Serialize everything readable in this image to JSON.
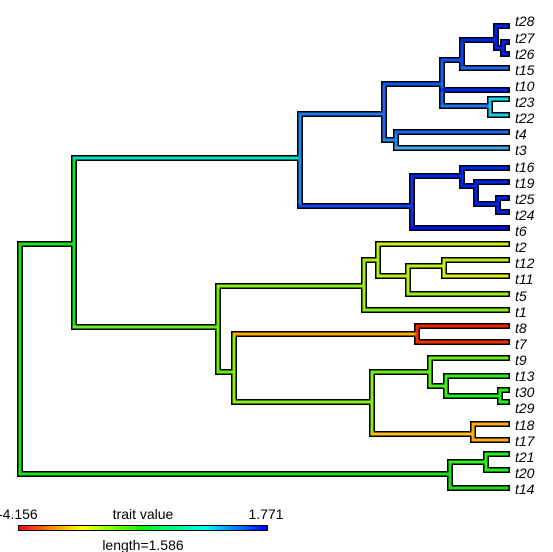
{
  "chart_data": {
    "type": "phylogram",
    "tips": [
      "t28",
      "t27",
      "t26",
      "t15",
      "t10",
      "t23",
      "t22",
      "t4",
      "t3",
      "t16",
      "t19",
      "t25",
      "t24",
      "t6",
      "t2",
      "t12",
      "t11",
      "t5",
      "t1",
      "t8",
      "t7",
      "t9",
      "t13",
      "t30",
      "t29",
      "t18",
      "t17",
      "t21",
      "t20",
      "t14"
    ],
    "legend": {
      "title": "trait value",
      "min_label": "-4.156",
      "max_label": "1.771",
      "min": -4.156,
      "max": 1.771,
      "length_label": "length=1.586",
      "palette": [
        "#ff0000",
        "#ffff00",
        "#00ff00",
        "#00ffff",
        "#0000ff"
      ]
    }
  }
}
